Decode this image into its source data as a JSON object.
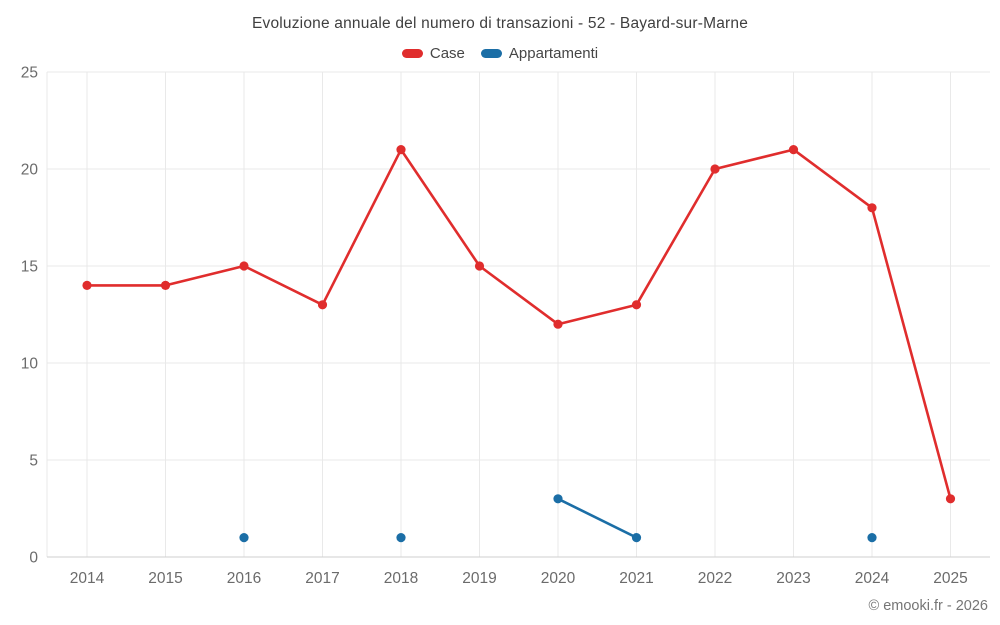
{
  "chart_data": {
    "type": "line",
    "title": "Evoluzione annuale del numero di transazioni - 52 - Bayard-sur-Marne",
    "x": [
      "2014",
      "2015",
      "2016",
      "2017",
      "2018",
      "2019",
      "2020",
      "2021",
      "2022",
      "2023",
      "2024",
      "2025"
    ],
    "series": [
      {
        "name": "Case",
        "color": "#e02d2d",
        "values": [
          14,
          14,
          15,
          13,
          21,
          15,
          12,
          13,
          20,
          21,
          18,
          3
        ]
      },
      {
        "name": "Appartamenti",
        "color": "#1b6ea6",
        "values": [
          null,
          null,
          1,
          null,
          1,
          null,
          3,
          1,
          null,
          null,
          1,
          null
        ]
      }
    ],
    "ylim": [
      0,
      25
    ],
    "yticks": [
      0,
      5,
      10,
      15,
      20,
      25
    ],
    "grid": true,
    "legend_position": "top",
    "xlabel": "",
    "ylabel": "",
    "footer": "© emooki.fr - 2026"
  }
}
